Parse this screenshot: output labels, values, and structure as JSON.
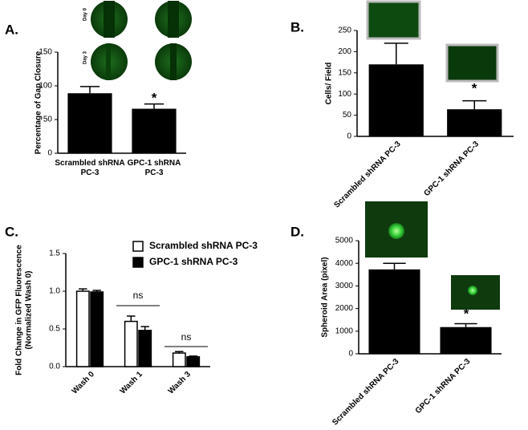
{
  "chart_data": [
    {
      "type": "bar",
      "panel": "A.",
      "ylabel": "Percentage of Gap Closure",
      "categories": [
        "Scrambled shRNA PC-3",
        "GPC-1 shRNA PC-3"
      ],
      "values": [
        89,
        66
      ],
      "errors": [
        10,
        7
      ],
      "color": "#000000",
      "ylim": [
        0,
        150
      ],
      "yticks": [
        0,
        50,
        100,
        150
      ],
      "image_labels": [
        "Day 0",
        "Day 3"
      ],
      "annotations": [
        "*"
      ]
    },
    {
      "type": "bar",
      "panel": "B.",
      "ylabel": "Cells/ Field",
      "categories": [
        "Scrambled shRNA PC-3",
        "GPC-1 shRNA PC-3"
      ],
      "values": [
        170,
        64
      ],
      "errors": [
        50,
        20
      ],
      "color": "#000000",
      "ylim": [
        0,
        250
      ],
      "yticks": [
        0,
        50,
        100,
        150,
        200,
        250
      ],
      "annotations": [
        "*"
      ]
    },
    {
      "type": "grouped-bar",
      "panel": "C.",
      "ylabel": [
        "Fold Change in GFP Fluorescence",
        "(Normalized Wash 0)"
      ],
      "categories": [
        "Wash 0",
        "Wash 1",
        "Wash 3"
      ],
      "series": [
        {
          "name": "Scrambled shRNA PC-3",
          "color": "#ffffff",
          "values": [
            1.0,
            0.6,
            0.18
          ],
          "errors": [
            0.03,
            0.07,
            0.02
          ]
        },
        {
          "name": "GPC-1  shRNA PC-3",
          "color": "#000000",
          "values": [
            0.99,
            0.48,
            0.13
          ],
          "errors": [
            0.02,
            0.05,
            0.01
          ]
        }
      ],
      "ylim": [
        0,
        1.5
      ],
      "yticks": [
        {
          "value": 0,
          "label": "0.0"
        },
        0.5,
        {
          "value": 1,
          "label": "1.0"
        },
        1.5
      ],
      "annotations": [
        "ns",
        "ns"
      ]
    },
    {
      "type": "bar",
      "panel": "D.",
      "ylabel": "Spheroid Area  (pixel)",
      "categories": [
        "Scrambled shRNA PC-3",
        "GPC-1 shRNA PC-3"
      ],
      "values": [
        3730,
        1180
      ],
      "errors": [
        270,
        150
      ],
      "color": "#000000",
      "ylim": [
        0,
        5000
      ],
      "yticks": [
        0,
        1000,
        2000,
        3000,
        4000,
        5000
      ],
      "annotations": [
        "*"
      ]
    }
  ]
}
